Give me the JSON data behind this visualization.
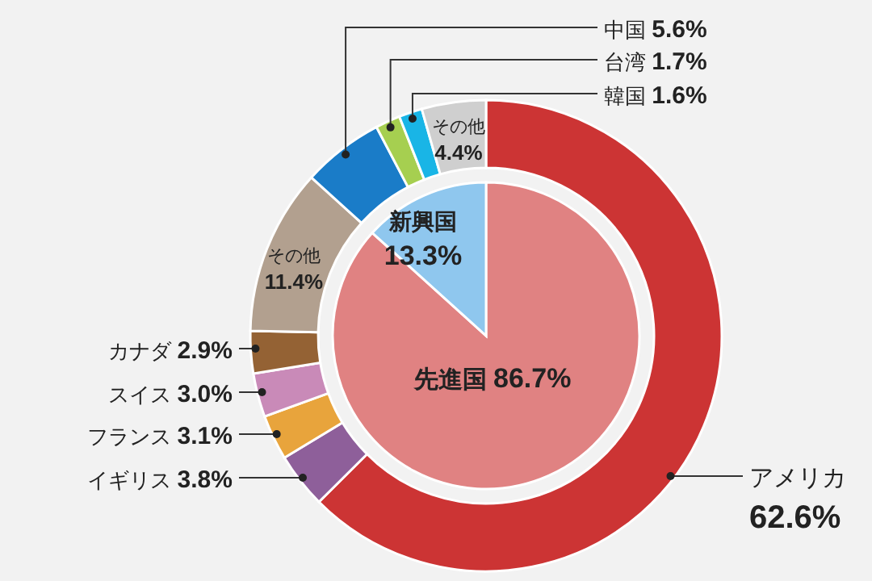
{
  "chart_data": [
    {
      "type": "pie",
      "categories": [
        "先進国",
        "新興国"
      ],
      "values": [
        86.7,
        13.3
      ],
      "colors": [
        "#e08282",
        "#8fc7ee"
      ],
      "value_labels": [
        "86.7%",
        "13.3%"
      ]
    },
    {
      "type": "donut",
      "categories": [
        "アメリカ",
        "イギリス",
        "フランス",
        "スイス",
        "カナダ",
        "その他",
        "中国",
        "台湾",
        "韓国",
        "その他"
      ],
      "values": [
        62.6,
        3.8,
        3.1,
        3.0,
        2.9,
        11.4,
        5.6,
        1.7,
        1.6,
        4.4
      ],
      "colors": [
        "#cc3434",
        "#8e5f9a",
        "#e8a43c",
        "#c98ab8",
        "#946234",
        "#b2a08f",
        "#1a7cc8",
        "#a6cf50",
        "#19b5e6",
        "#cfcfcf"
      ],
      "value_labels": [
        "62.6%",
        "3.8%",
        "3.1%",
        "3.0%",
        "2.9%",
        "11.4%",
        "5.6%",
        "1.7%",
        "1.6%",
        "4.4%"
      ]
    }
  ]
}
